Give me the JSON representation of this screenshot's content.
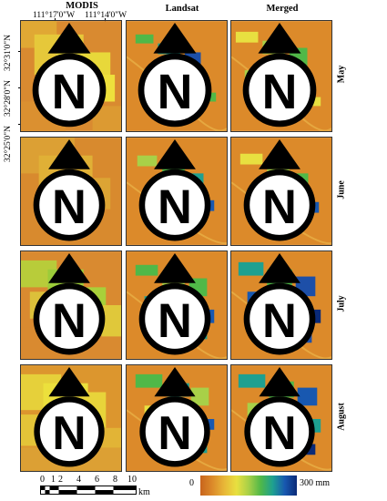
{
  "columns": {
    "modis": "MODIS",
    "landsat": "Landsat",
    "merged": "Merged"
  },
  "lon_labels": [
    "111°17'0\"W",
    "111°14'0\"W"
  ],
  "lat_labels": [
    "32°31'0\"N",
    "32°28'0\"N",
    "32°25'0\"N"
  ],
  "months": [
    "May",
    "June",
    "July",
    "August"
  ],
  "north_letter": "N",
  "scale_bar": {
    "ticks": [
      "0",
      "1",
      "2",
      "4",
      "6",
      "8",
      "10"
    ],
    "unit": "km"
  },
  "colorbar": {
    "min_label": "0",
    "max_label": "300 mm",
    "colors": [
      "#c8641c",
      "#dc8a2a",
      "#e8b838",
      "#e8e040",
      "#a8d048",
      "#50b848",
      "#1ea090",
      "#1858b0",
      "#0a2a78"
    ]
  },
  "palette": {
    "bg": "#dc8a2a",
    "bg_light": "#e2a038",
    "modis_low": "#d98a30",
    "modis_high": "#e8dc3a",
    "green": "#9ccc3a",
    "blue": "#1d4fa8",
    "teal": "#25a088"
  }
}
